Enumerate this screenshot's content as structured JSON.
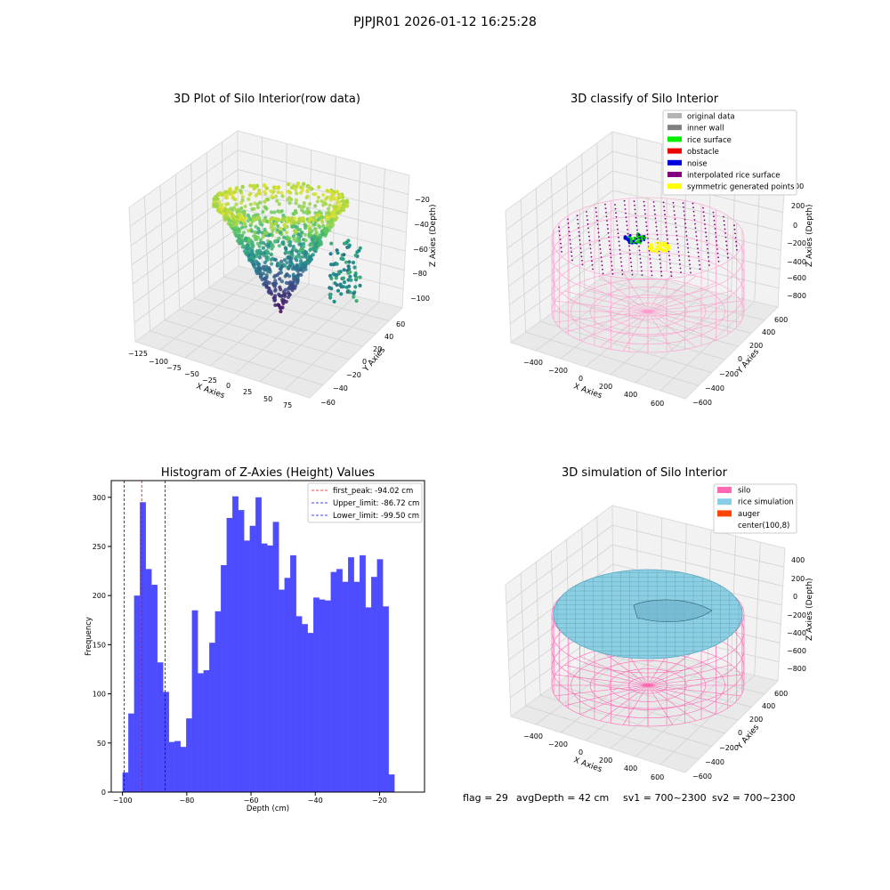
{
  "figure": {
    "suptitle": "PJPJR01 2026-01-12 16:25:28"
  },
  "chart_data": [
    {
      "type": "scatter",
      "title": "3D Plot of Silo Interior(row data)",
      "xlabel": "X Axies",
      "ylabel": "Y Axies",
      "zlabel": "Z Axies (Depth)",
      "x_ticks": [
        "−125",
        "−100",
        "−75",
        "−50",
        "−25",
        "0",
        "25",
        "50",
        "75"
      ],
      "y_ticks": [
        "−60",
        "−40",
        "−20",
        "0",
        "20",
        "40",
        "60"
      ],
      "z_ticks": [
        "−20",
        "−40",
        "−60",
        "−80",
        "−100"
      ],
      "colormap": "viridis",
      "zlim": [
        -100,
        -20
      ]
    },
    {
      "type": "scatter",
      "title": "3D classify of Silo Interior",
      "xlabel": "X Axies",
      "ylabel": "Y Axies",
      "zlabel": "Z Axies (Depth)",
      "x_ticks": [
        "−400",
        "−200",
        "0",
        "200",
        "400",
        "600"
      ],
      "y_ticks": [
        "−600",
        "−400",
        "−200",
        "0",
        "200",
        "400",
        "600"
      ],
      "z_ticks": [
        "200",
        "0",
        "−200",
        "−400",
        "−600",
        "−800"
      ],
      "z_ticks_extra": "00",
      "legend": [
        {
          "label": "original data",
          "color": "#b3b3b3"
        },
        {
          "label": "inner wall",
          "color": "#808080"
        },
        {
          "label": "rice surface",
          "color": "#00ee00"
        },
        {
          "label": "obstacle",
          "color": "#ee0000"
        },
        {
          "label": "noise",
          "color": "#0000dd"
        },
        {
          "label": "interpolated rice surface",
          "color": "#800080"
        },
        {
          "label": "symmetric generated points",
          "color": "#ffff00"
        }
      ],
      "legend_position": "top-right"
    },
    {
      "type": "bar",
      "title": "Histogram of Z-Axies (Height) Values",
      "xlabel": "Depth (cm)",
      "ylabel": "Frequency",
      "bin_start": -100,
      "bin_width": 1.8,
      "values": [
        20,
        80,
        200,
        295,
        227,
        211,
        132,
        102,
        51,
        52,
        46,
        75,
        185,
        121,
        124,
        152,
        184,
        231,
        279,
        301,
        287,
        256,
        271,
        300,
        253,
        251,
        275,
        206,
        218,
        241,
        179,
        171,
        162,
        198,
        196,
        195,
        224,
        227,
        214,
        239,
        214,
        241,
        188,
        219,
        237,
        189,
        18
      ],
      "xlim": [
        -103.5,
        -6
      ],
      "ylim": [
        0,
        317
      ],
      "x_ticks": [
        -100,
        -80,
        -60,
        -40,
        -20
      ],
      "y_ticks": [
        0,
        50,
        100,
        150,
        200,
        250,
        300
      ],
      "bar_color": "#4d4dff",
      "vlines": [
        {
          "label": "first_peak: -94.02 cm",
          "x": -94.02,
          "color": "#ff0000"
        },
        {
          "label": "Upper_limit: -86.72 cm",
          "x": -86.72,
          "color": "#0000ff"
        },
        {
          "label": "Lower_limit: -99.50 cm",
          "x": -99.5,
          "color": "#0000ff"
        }
      ],
      "legend_position": "top-right"
    },
    {
      "type": "area",
      "title": "3D simulation of Silo Interior",
      "xlabel": "X Axies",
      "ylabel": "Y Axies",
      "zlabel": "Z Axies (Depth)",
      "x_ticks": [
        "−400",
        "−200",
        "0",
        "200",
        "400",
        "600"
      ],
      "y_ticks": [
        "−600",
        "−400",
        "−200",
        "0",
        "200",
        "400",
        "600"
      ],
      "z_ticks": [
        "400",
        "200",
        "0",
        "−200",
        "−400",
        "−600",
        "−800"
      ],
      "legend": [
        {
          "label": "silo",
          "color": "#ff69b4"
        },
        {
          "label": "rice simulation",
          "color": "#87ceeb"
        },
        {
          "label": "auger",
          "color": "#ff4500"
        },
        {
          "label": "center(100,8)",
          "color": ""
        }
      ],
      "legend_position": "top-right"
    }
  ],
  "footer": {
    "flag": "flag = 29",
    "avg_depth": "avgDepth = 42 cm",
    "sv1": "sv1 = 700~2300",
    "sv2": "sv2 = 700~2300"
  }
}
